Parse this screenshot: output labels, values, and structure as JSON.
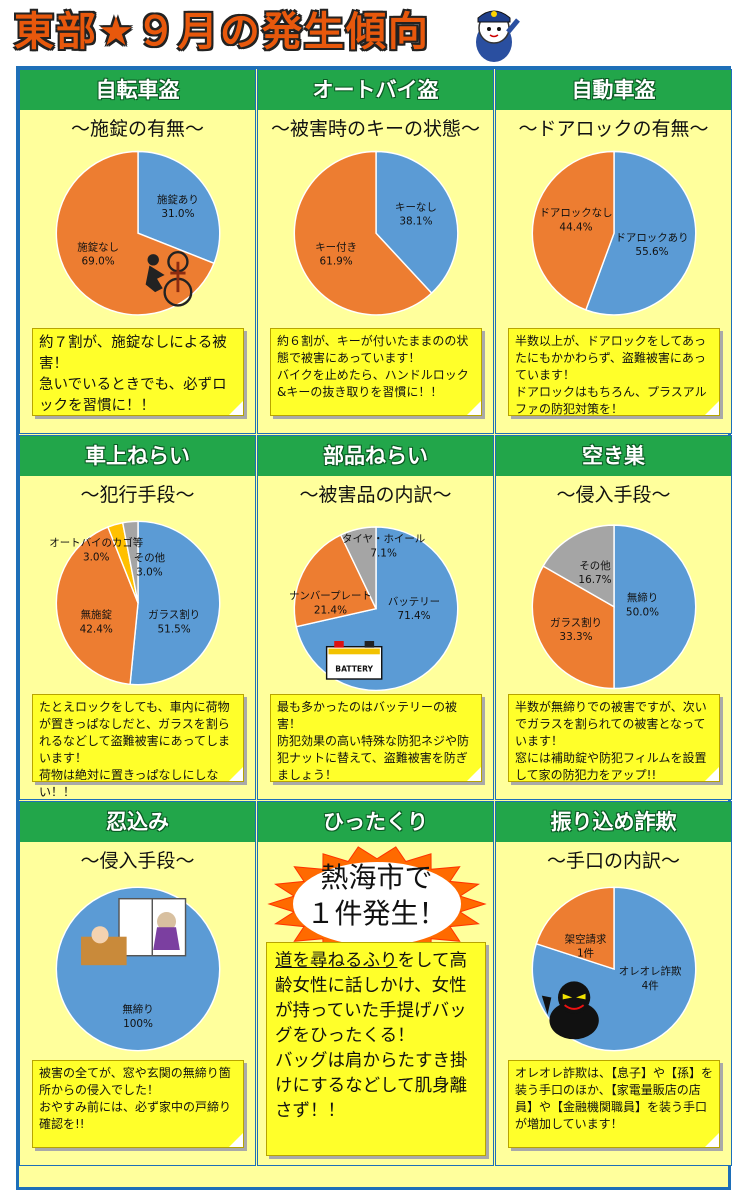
{
  "page": {
    "title": "東部★９月の発生傾向"
  },
  "colors": {
    "blue": "#5b9bd5",
    "orange": "#ed7d31",
    "gray": "#a5a5a5",
    "yellow": "#ffc000",
    "header": "#22a64a"
  },
  "panels": [
    {
      "key": "p1",
      "header": "自転車盗",
      "subtitle": "～施錠の有無～",
      "chart_data": {
        "type": "pie",
        "slices": [
          {
            "label": "施錠あり",
            "value": 31.0,
            "display": "31.0%",
            "color": "#5b9bd5"
          },
          {
            "label": "施錠なし",
            "value": 69.0,
            "display": "69.0%",
            "color": "#ed7d31"
          }
        ]
      },
      "icon": "bicycle-thief-icon",
      "note": "約７割が、施錠なしによる被害！\n急いでいるときでも、必ずロックを習慣に！！",
      "big": true
    },
    {
      "key": "p2",
      "header": "オートバイ盗",
      "subtitle": "～被害時のキーの状態～",
      "chart_data": {
        "type": "pie",
        "slices": [
          {
            "label": "キーなし",
            "value": 38.1,
            "display": "38.1%",
            "color": "#5b9bd5"
          },
          {
            "label": "キー付き",
            "value": 61.9,
            "display": "61.9%",
            "color": "#ed7d31"
          }
        ]
      },
      "note": "約６割が、キーが付いたままのの状態で被害にあっています！\nバイクを止めたら、ハンドルロック&キーの抜き取りを習慣に！！",
      "big": false
    },
    {
      "key": "p3",
      "header": "自動車盗",
      "subtitle": "～ドアロックの有無～",
      "chart_data": {
        "type": "pie",
        "slices": [
          {
            "label": "ドアロックあり",
            "value": 55.6,
            "display": "55.6%",
            "color": "#5b9bd5"
          },
          {
            "label": "ドアロックなし",
            "value": 44.4,
            "display": "44.4%",
            "color": "#ed7d31"
          }
        ]
      },
      "note": "半数以上が、ドアロックをしてあったにもかかわらず、盗難被害にあっています！\nドアロックはもちろん、プラスアルファの防犯対策を！",
      "big": false
    },
    {
      "key": "p4",
      "header": "車上ねらい",
      "subtitle": "～犯行手段～",
      "chart_data": {
        "type": "pie",
        "slices": [
          {
            "label": "ガラス割り",
            "value": 51.5,
            "display": "51.5%",
            "color": "#5b9bd5"
          },
          {
            "label": "無施錠",
            "value": 42.4,
            "display": "42.4%",
            "color": "#ed7d31"
          },
          {
            "label": "オートバイのカゴ等",
            "value": 3.0,
            "display": "3.0%",
            "color": "#ffc000"
          },
          {
            "label": "その他",
            "value": 3.0,
            "display": "3.0%",
            "color": "#a5a5a5"
          }
        ]
      },
      "note": "たとえロックをしても、車内に荷物が置きっぱなしだと、ガラスを割られるなどして盗難被害にあってしまいます！\n荷物は絶対に置きっぱなしにしない！！",
      "big": false
    },
    {
      "key": "p5",
      "header": "部品ねらい",
      "subtitle": "～被害品の内訳～",
      "chart_data": {
        "type": "pie",
        "slices": [
          {
            "label": "バッテリー",
            "value": 71.4,
            "display": "71.4%",
            "color": "#5b9bd5"
          },
          {
            "label": "ナンバープレート",
            "value": 21.4,
            "display": "21.4%",
            "color": "#ed7d31"
          },
          {
            "label": "タイヤ・ホイール",
            "value": 7.1,
            "display": "7.1%",
            "color": "#a5a5a5"
          }
        ]
      },
      "icon": "battery-icon",
      "icon_text": "BATTERY",
      "note": "最も多かったのはバッテリーの被害！\n防犯効果の高い特殊な防犯ネジや防犯ナットに替えて、盗難被害を防ぎましょう！",
      "big": false
    },
    {
      "key": "p6",
      "header": "空き巣",
      "subtitle": "～侵入手段～",
      "chart_data": {
        "type": "pie",
        "slices": [
          {
            "label": "無締り",
            "value": 50.0,
            "display": "50.0%",
            "color": "#5b9bd5"
          },
          {
            "label": "ガラス割り",
            "value": 33.3,
            "display": "33.3%",
            "color": "#ed7d31"
          },
          {
            "label": "その他",
            "value": 16.7,
            "display": "16.7%",
            "color": "#a5a5a5"
          }
        ]
      },
      "note": "半数が無締りでの被害ですが、次いでガラスを割られての被害となっています！\n窓には補助錠や防犯フィルムを設置して家の防犯力をアップ!!",
      "big": false
    },
    {
      "key": "p7",
      "header": "忍込み",
      "subtitle": "～侵入手段～",
      "chart_data": {
        "type": "pie",
        "slices": [
          {
            "label": "無締り",
            "value": 100,
            "display": "100%",
            "color": "#5b9bd5"
          }
        ]
      },
      "icon": "sleeping-burglar-icon",
      "note": "被害の全てが、窓や玄関の無締り箇所からの侵入でした！\nおやすみ前には、必ず家中の戸締り確認を!!",
      "big": false
    },
    {
      "key": "p8",
      "header": "ひったくり",
      "burst": "熱海市で\n１件発生！",
      "note_parts": [
        "道を尋ねるふり",
        "をして高齢女性に話しかけ、女性が持っていた手提げバッグをひったくる！\nバッグは肩からたすき掛けにするなどして肌身離さず！！"
      ]
    },
    {
      "key": "p9",
      "header": "振り込め詐欺",
      "subtitle": "～手口の内訳～",
      "chart_data": {
        "type": "pie",
        "slices": [
          {
            "label": "オレオレ詐欺",
            "value": 4,
            "display": "4件",
            "color": "#5b9bd5"
          },
          {
            "label": "架空請求",
            "value": 1,
            "display": "1件",
            "color": "#ed7d31"
          }
        ]
      },
      "icon": "scammer-icon",
      "note": "オレオレ詐欺は、【息子】や【孫】を装う手口のほか、【家電量販店の店員】や【金融機関職員】を装う手口が増加しています！",
      "big": false
    }
  ]
}
